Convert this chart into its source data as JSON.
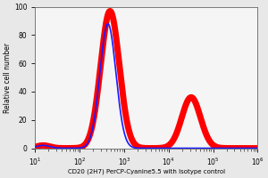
{
  "title": "",
  "xlabel": "CD20 (2H7) PerCP-Cyanine5.5 with Isotype control",
  "ylabel": "Relative cell number",
  "xlim": [
    10,
    1000000
  ],
  "ylim": [
    0,
    100
  ],
  "yticks": [
    0,
    20,
    40,
    60,
    80,
    100
  ],
  "bg_color": "#e8e8e8",
  "plot_bg_color": "#f5f5f5",
  "red_color": "#ff0000",
  "blue_color": "#1a1aff",
  "red_linewidth": 5.0,
  "blue_linewidth": 1.2,
  "xlabel_fontsize": 5.0,
  "ylabel_fontsize": 5.5,
  "tick_fontsize": 5.5
}
